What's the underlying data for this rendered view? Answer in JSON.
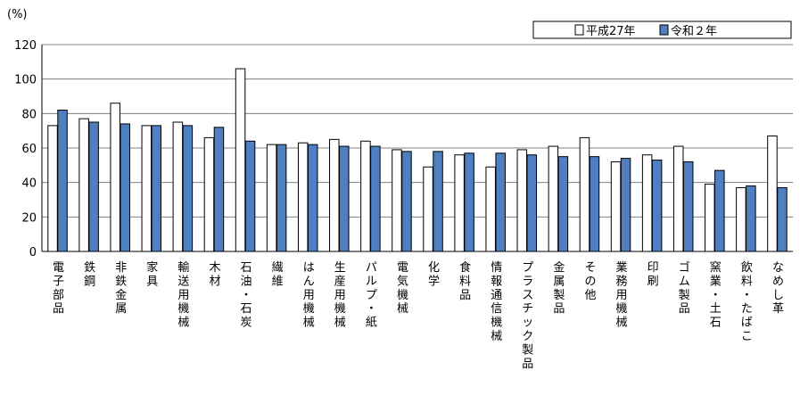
{
  "chart_data": {
    "type": "bar",
    "unit_label": "(%)",
    "ylim": [
      0,
      120
    ],
    "yticks": [
      0,
      20,
      40,
      60,
      80,
      100,
      120
    ],
    "grid": true,
    "legend_position": "top-right",
    "colors": {
      "series0": "#ffffff",
      "series1": "#4f7fc0",
      "stroke": "#000000",
      "grid": "#808080"
    },
    "categories": [
      "電子部品",
      "鉄鋼",
      "非鉄金属",
      "家具",
      "輸送用機械",
      "木材",
      "石油・石炭",
      "繊維",
      "はん用機械",
      "生産用機械",
      "パルプ・紙",
      "電気機械",
      "化学",
      "食料品",
      "情報通信機械",
      "プラスチック製品",
      "金属製品",
      "その他",
      "業務用機械",
      "印刷",
      "ゴム製品",
      "窯業・土石",
      "飲料・たばこ",
      "なめし革"
    ],
    "series": [
      {
        "name": "平成27年",
        "values": [
          73,
          77,
          86,
          73,
          75,
          66,
          106,
          62,
          63,
          65,
          64,
          59,
          49,
          56,
          49,
          59,
          61,
          66,
          52,
          56,
          61,
          39,
          37,
          67
        ]
      },
      {
        "name": "令和２年",
        "values": [
          82,
          75,
          74,
          73,
          73,
          72,
          64,
          62,
          62,
          61,
          61,
          58,
          58,
          57,
          57,
          56,
          55,
          55,
          54,
          53,
          52,
          47,
          38,
          37
        ]
      }
    ]
  }
}
